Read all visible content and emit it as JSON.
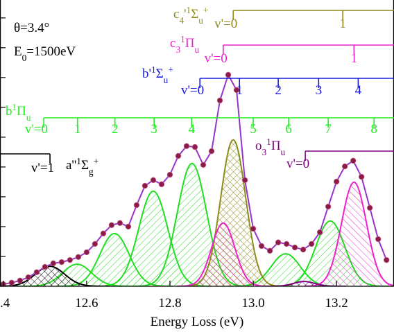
{
  "chart_data": {
    "type": "spectrum",
    "xlabel": "Energy Loss (eV)",
    "xlim": [
      12.392,
      13.338
    ],
    "xticks": [
      {
        "value": 12.4,
        "label": ".4"
      },
      12.6,
      12.8,
      {
        "value": 13,
        "label": "13.0"
      },
      13.2
    ],
    "ylim": [
      0,
      9.6
    ],
    "yticks": [
      0,
      1,
      2,
      3,
      4,
      5,
      6,
      7,
      8,
      9
    ],
    "annotations": [
      [
        {
          "text": "θ=3.4°"
        }
      ],
      [
        {
          "text": "E"
        },
        {
          "text": "0",
          "shift": "sub"
        },
        {
          "text": "=1500eV"
        }
      ]
    ],
    "x": [
      12.4,
      12.42,
      12.44,
      12.46,
      12.48,
      12.5,
      12.52,
      12.54,
      12.56,
      12.58,
      12.6,
      12.62,
      12.64,
      12.66,
      12.68,
      12.7,
      12.72,
      12.74,
      12.76,
      12.78,
      12.8,
      12.82,
      12.84,
      12.86,
      12.88,
      12.9,
      12.92,
      12.94,
      12.96,
      12.98,
      13.0,
      13.02,
      13.04,
      13.06,
      13.08,
      13.1,
      13.12,
      13.14,
      13.16,
      13.18,
      13.2,
      13.22,
      13.24,
      13.26,
      13.28,
      13.3,
      13.32
    ],
    "points": {
      "color": "#8b1a4a",
      "values": [
        0.07,
        0.12,
        0.19,
        0.3,
        0.47,
        0.65,
        0.77,
        0.81,
        0.88,
        0.98,
        1.14,
        1.42,
        1.77,
        2.05,
        2.12,
        2.0,
        2.72,
        3.37,
        3.56,
        3.42,
        3.74,
        4.37,
        4.7,
        4.67,
        4.07,
        4.53,
        6.23,
        7.09,
        6.58,
        3.56,
        1.93,
        1.35,
        1.19,
        1.47,
        1.42,
        1.3,
        1.23,
        1.42,
        1.81,
        2.67,
        3.51,
        4.02,
        4.21,
        3.67,
        2.63,
        1.58,
        0.88
      ]
    },
    "fit": {
      "color": "#9933cc",
      "values": [
        0.07,
        0.12,
        0.19,
        0.3,
        0.47,
        0.65,
        0.77,
        0.81,
        0.88,
        0.98,
        1.14,
        1.42,
        1.77,
        2.05,
        2.12,
        2.0,
        2.72,
        3.37,
        3.56,
        3.42,
        3.74,
        4.37,
        4.7,
        4.67,
        4.07,
        4.53,
        6.23,
        7.09,
        6.58,
        3.56,
        1.93,
        1.35,
        1.19,
        1.47,
        1.42,
        1.3,
        1.23,
        1.42,
        1.81,
        2.67,
        3.51,
        4.02,
        4.21,
        3.67,
        2.63,
        1.58,
        0.88
      ]
    },
    "components": [
      {
        "color": "#22dd22",
        "hatch": "/",
        "center": 12.577,
        "height": 0.74,
        "width": 0.035
      },
      {
        "color": "#22dd22",
        "hatch": "/",
        "center": 12.667,
        "height": 1.77,
        "width": 0.035
      },
      {
        "color": "#22dd22",
        "hatch": "/",
        "center": 12.76,
        "height": 3.19,
        "width": 0.035
      },
      {
        "color": "#22dd22",
        "hatch": "/",
        "center": 12.853,
        "height": 4.12,
        "width": 0.035
      },
      {
        "color": "#22dd22",
        "hatch": "/",
        "center": 13.078,
        "height": 1.09,
        "width": 0.035
      },
      {
        "color": "#22dd22",
        "hatch": "/",
        "center": 13.185,
        "height": 2.19,
        "width": 0.035
      },
      {
        "color": "#8c8c1a",
        "hatch": "x",
        "center": 12.952,
        "height": 4.91,
        "width": 0.03
      },
      {
        "color": "#ee22cc",
        "hatch": "\\",
        "center": 12.928,
        "height": 2.12,
        "width": 0.028
      },
      {
        "color": "#ee22cc",
        "hatch": "\\",
        "center": 13.242,
        "height": 3.49,
        "width": 0.03
      },
      {
        "color": "#000000",
        "hatch": "x",
        "center": 12.512,
        "height": 0.67,
        "width": 0.035
      },
      {
        "color": "#800080",
        "hatch": "x",
        "center": 13.122,
        "height": 0.16,
        "width": 0.025
      }
    ],
    "progressions": [
      {
        "color": "#8c8c1a",
        "label": [
          {
            "text": "c"
          },
          {
            "text": "4",
            "shift": "sub"
          },
          {
            "text": "'"
          },
          {
            "text": "1",
            "shift": "super"
          },
          {
            "text": "Σ"
          },
          {
            "text": "u",
            "shift": "sub"
          },
          {
            "text": "+",
            "shift": "super"
          }
        ],
        "levels": [
          12.952,
          13.215
        ],
        "level_labels": [
          "v'=0",
          "1"
        ]
      },
      {
        "color": "#ee22cc",
        "label": [
          {
            "text": "c"
          },
          {
            "text": "3",
            "shift": "sub"
          },
          {
            "text": "1",
            "shift": "super"
          },
          {
            "text": "Π"
          },
          {
            "text": "u",
            "shift": "sub"
          }
        ],
        "levels": [
          12.928,
          13.242
        ],
        "level_labels": [
          "v'=0",
          "1"
        ]
      },
      {
        "color": "#1a1add",
        "label": [
          {
            "text": "b'"
          },
          {
            "text": "1",
            "shift": "super"
          },
          {
            "text": "Σ"
          },
          {
            "text": "u",
            "shift": "sub"
          },
          {
            "text": "+",
            "shift": "super"
          }
        ],
        "levels": [
          12.872,
          12.967,
          13.06,
          13.157,
          13.252
        ],
        "level_labels": [
          "v'=0",
          "1",
          "2",
          "3",
          "4"
        ]
      },
      {
        "color": "#22ee22",
        "label": [
          {
            "text": "b"
          },
          {
            "text": "1",
            "shift": "super"
          },
          {
            "text": "Π"
          },
          {
            "text": "u",
            "shift": "sub"
          }
        ],
        "levels": [
          12.497,
          12.578,
          12.668,
          12.762,
          12.852,
          13.0,
          13.085,
          13.18,
          13.29
        ],
        "level_labels": [
          "v'=0",
          "1",
          "2",
          "3",
          "4",
          "5",
          "6",
          "7",
          "8"
        ]
      },
      {
        "color": "#800080",
        "label": [
          {
            "text": "o"
          },
          {
            "text": "3",
            "shift": "sub"
          },
          {
            "text": "1",
            "shift": "super"
          },
          {
            "text": "Π"
          },
          {
            "text": "u",
            "shift": "sub"
          }
        ],
        "levels": [
          13.125
        ],
        "level_labels": [
          "v'=0"
        ]
      },
      {
        "color": "#000000",
        "label": [
          {
            "text": "a''"
          },
          {
            "text": "1",
            "shift": "super"
          },
          {
            "text": "Σ"
          },
          {
            "text": "g",
            "shift": "sub"
          },
          {
            "text": "+",
            "shift": "super"
          }
        ],
        "levels": [
          12.512
        ],
        "level_labels": [
          "v'=1"
        ]
      }
    ]
  }
}
